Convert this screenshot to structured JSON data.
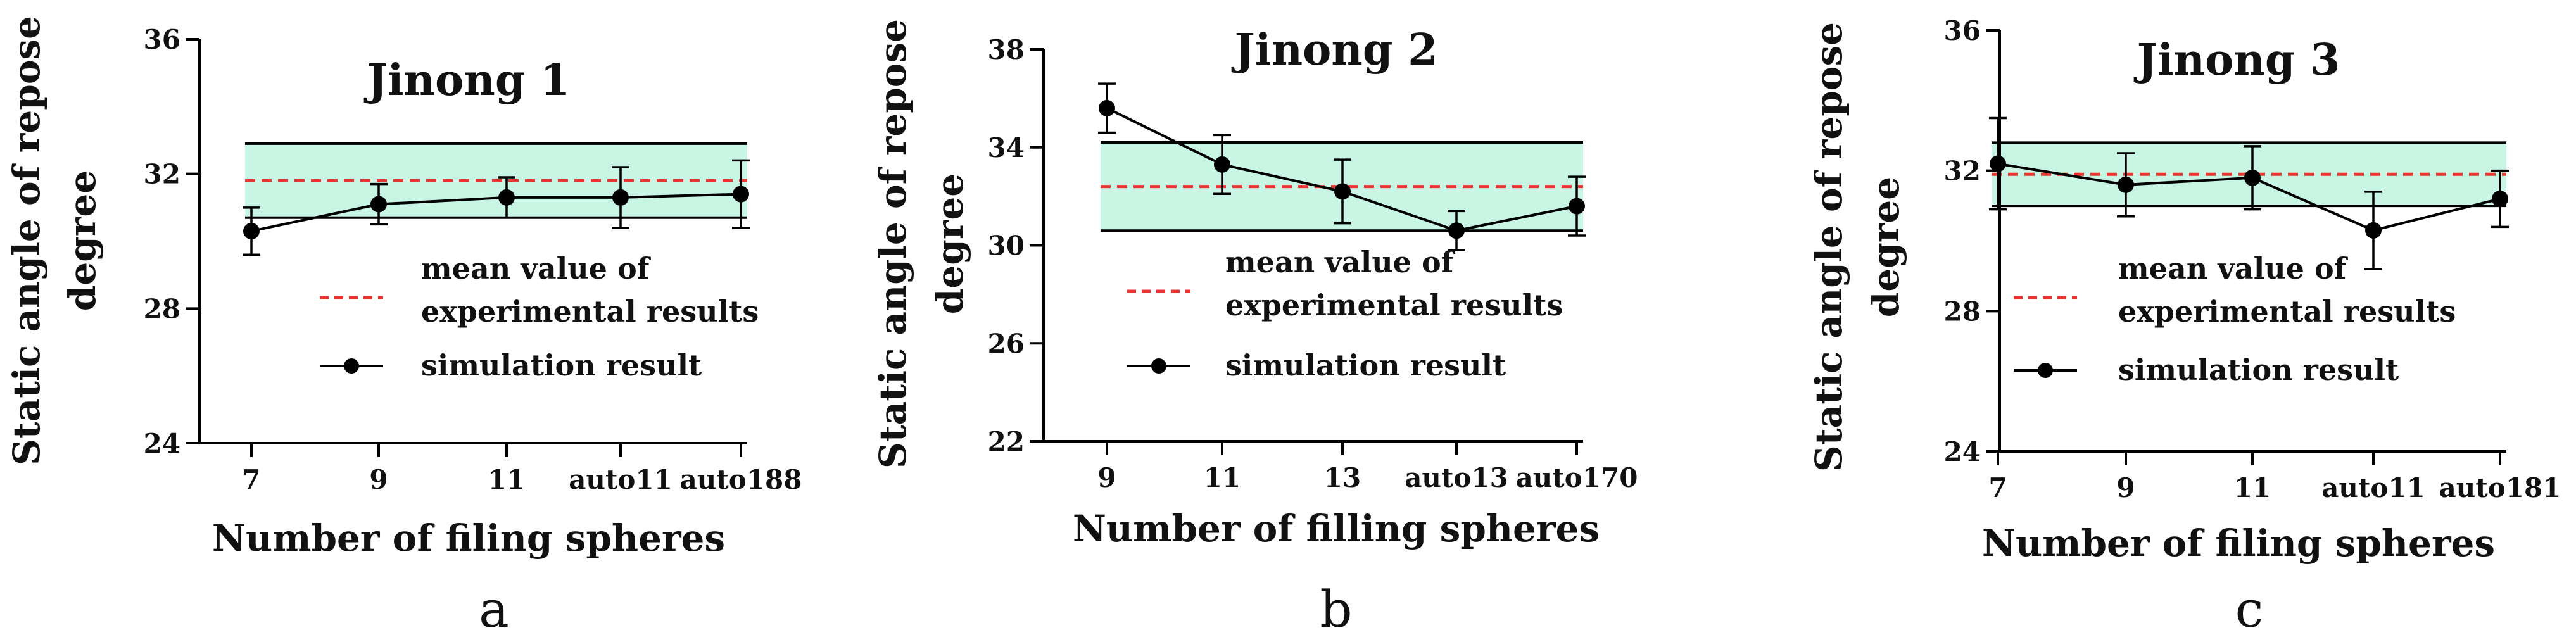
{
  "chart_data": [
    {
      "type": "line",
      "panel": "a",
      "title": "Jinong 1",
      "xlabel": "Number of filing spheres",
      "ylabel_line1": "Static angle of repose",
      "ylabel_line2": "degree",
      "categories": [
        "7",
        "9",
        "11",
        "auto11",
        "auto188"
      ],
      "yticks": [
        "24",
        "28",
        "32",
        "36"
      ],
      "ylim": [
        24,
        36
      ],
      "series": [
        {
          "name": "simulation result",
          "values": [
            30.3,
            31.1,
            31.3,
            31.3,
            31.4
          ],
          "errors": [
            0.7,
            0.6,
            0.6,
            0.9,
            1.0
          ]
        }
      ],
      "experimental": {
        "name_line1": "mean value of",
        "name_line2": "experimental results",
        "mean": 31.8,
        "band": [
          30.7,
          32.9
        ]
      },
      "colors": {
        "band": "#c8f5e4",
        "mean": "#ee3333",
        "line": "#000000"
      }
    },
    {
      "type": "line",
      "panel": "b",
      "title": "Jinong 2",
      "xlabel": "Number of filling spheres",
      "ylabel_line1": "Static angle of repose",
      "ylabel_line2": "degree",
      "categories": [
        "9",
        "11",
        "13",
        "auto13",
        "auto170"
      ],
      "yticks": [
        "22",
        "26",
        "30",
        "34",
        "38"
      ],
      "ylim": [
        22,
        38
      ],
      "series": [
        {
          "name": "simulation result",
          "values": [
            35.6,
            33.3,
            32.2,
            30.6,
            31.6
          ],
          "errors": [
            1.0,
            1.2,
            1.3,
            0.8,
            1.2
          ]
        }
      ],
      "experimental": {
        "name_line1": "mean value of",
        "name_line2": "experimental results",
        "mean": 32.4,
        "band": [
          30.6,
          34.2
        ]
      },
      "colors": {
        "band": "#c8f5e4",
        "mean": "#ee3333",
        "line": "#000000"
      }
    },
    {
      "type": "line",
      "panel": "c",
      "title": "Jinong 3",
      "xlabel": "Number of filing spheres",
      "ylabel_line1": "Static angle of repose",
      "ylabel_line2": "degree",
      "categories": [
        "7",
        "9",
        "11",
        "auto11",
        "auto181"
      ],
      "yticks": [
        "24",
        "28",
        "32",
        "36"
      ],
      "ylim": [
        24,
        36
      ],
      "series": [
        {
          "name": "simulation result",
          "values": [
            32.2,
            31.6,
            31.8,
            30.3,
            31.2
          ],
          "errors": [
            1.3,
            0.9,
            0.9,
            1.1,
            0.8
          ]
        }
      ],
      "experimental": {
        "name_line1": "mean value of",
        "name_line2": "experimental results",
        "mean": 31.9,
        "band": [
          31.0,
          32.8
        ]
      },
      "colors": {
        "band": "#c8f5e4",
        "mean": "#ee3333",
        "line": "#000000"
      }
    }
  ]
}
